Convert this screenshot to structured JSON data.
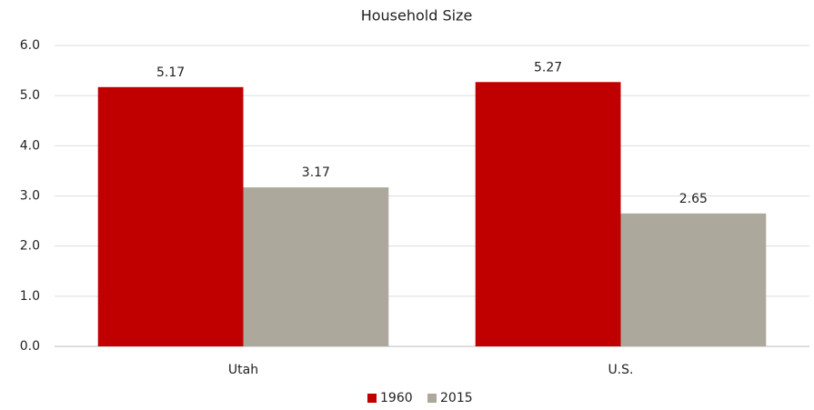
{
  "chart_data": {
    "type": "bar",
    "title": "Household Size",
    "categories": [
      "Utah",
      "U.S."
    ],
    "series": [
      {
        "name": "1960",
        "color": "#c00000",
        "values": [
          5.17,
          5.27
        ]
      },
      {
        "name": "2015",
        "color": "#aca99c",
        "values": [
          3.17,
          2.65
        ]
      }
    ],
    "ylim": [
      0,
      6
    ],
    "yticks": [
      {
        "value": 0,
        "label": "0.0"
      },
      {
        "value": 1,
        "label": "1.0"
      },
      {
        "value": 2,
        "label": "2.0"
      },
      {
        "value": 3,
        "label": "3.0"
      },
      {
        "value": 4,
        "label": "4.0"
      },
      {
        "value": 5,
        "label": "5.0"
      },
      {
        "value": 6,
        "label": "6.0"
      }
    ],
    "grid": true,
    "legend": "bottom"
  }
}
